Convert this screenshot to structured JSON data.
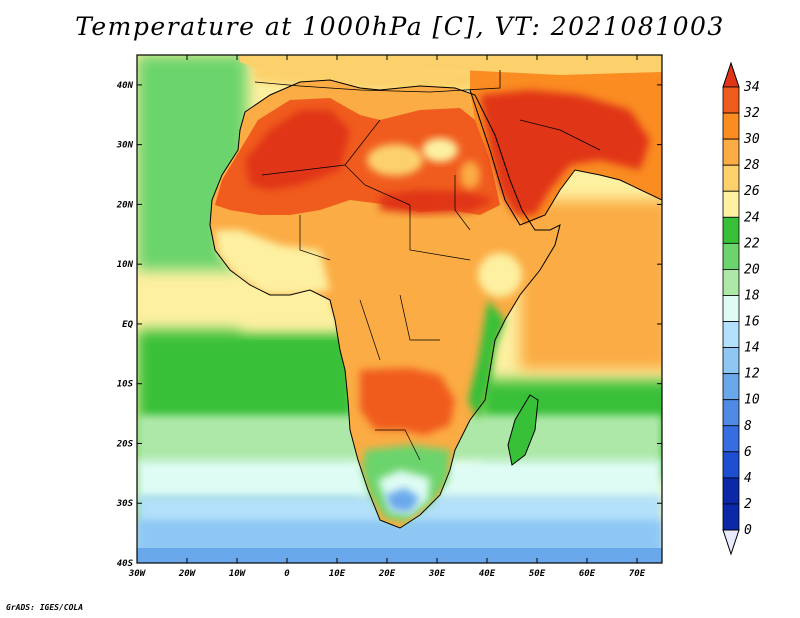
{
  "title": "Temperature at 1000hPa [C], VT: 2021081003",
  "credit": "GrADS: IGES/COLA",
  "map": {
    "lon_range": [
      -30,
      75
    ],
    "lat_range": [
      -40,
      45
    ],
    "lon_ticks": [
      "30W",
      "20W",
      "10W",
      "0",
      "10E",
      "20E",
      "30E",
      "40E",
      "50E",
      "60E",
      "70E"
    ],
    "lat_ticks": [
      "40N",
      "30N",
      "20N",
      "10N",
      "EQ",
      "10S",
      "20S",
      "30S",
      "40S"
    ]
  },
  "colorbar": {
    "levels": [
      "34",
      "32",
      "30",
      "28",
      "26",
      "24",
      "22",
      "20",
      "18",
      "16",
      "14",
      "12",
      "10",
      "8",
      "6",
      "4",
      "2",
      "0"
    ],
    "colors": [
      "#e03516",
      "#f05c1e",
      "#fa8c22",
      "#fbac44",
      "#fcd16c",
      "#fdf0a0",
      "#38c038",
      "#6cd46c",
      "#aee8a8",
      "#dffcf4",
      "#b3e0fa",
      "#8ec7f4",
      "#6aa8ec",
      "#4f8ae4",
      "#366de0",
      "#1e4fd0",
      "#0a28a8",
      "#eaeaff"
    ]
  }
}
